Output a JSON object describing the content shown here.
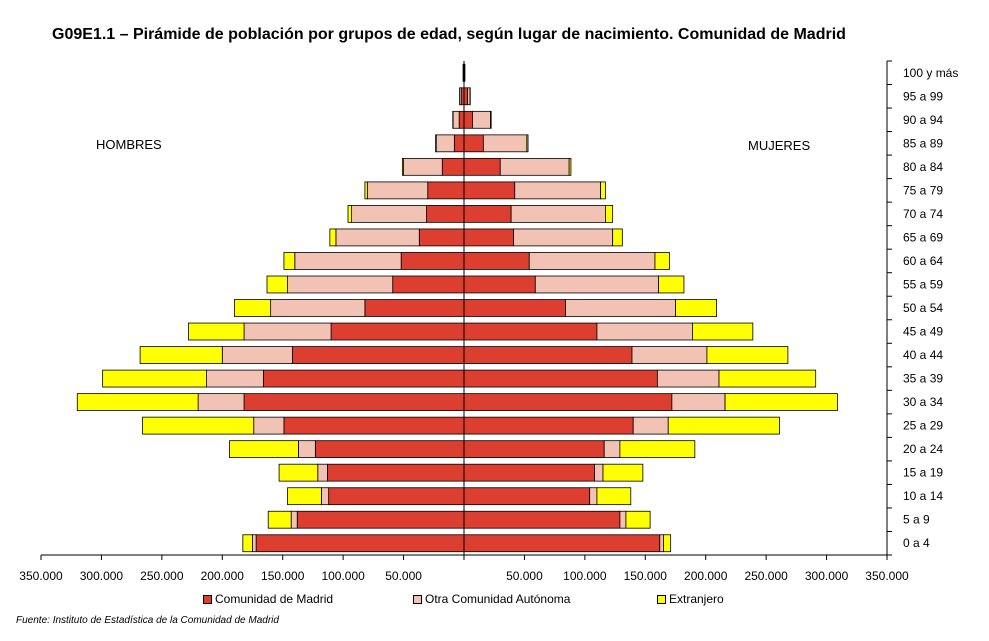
{
  "title": "G09E1.1 – Pirámide de población por grupos de edad, según lugar de nacimiento. Comunidad de Madrid",
  "side_labels": {
    "left": "HOMBRES",
    "right": "MUJERES"
  },
  "source": "Fuente: Instituto de Estadística de la Comunidad de Madrid",
  "colors": {
    "madrid": "#dc3e30",
    "otra": "#f2c2b4",
    "extranjero": "#ffff00"
  },
  "chart_data": {
    "type": "bar",
    "orientation": "horizontal-pyramid",
    "categories": [
      "0 a 4",
      "5 a 9",
      "10 a 14",
      "15 a 19",
      "20 a 24",
      "25 a 29",
      "30 a 34",
      "35 a 39",
      "40 a 44",
      "45 a 49",
      "50 a 54",
      "55 a 59",
      "60 a 64",
      "65 a 69",
      "70 a 74",
      "75 a 79",
      "80 a 84",
      "85 a 89",
      "90 a 94",
      "95 a 99",
      "100 y más"
    ],
    "x_ticks": [
      "350.000",
      "300.000",
      "250.000",
      "200.000",
      "150.000",
      "100.000",
      "50.000",
      "",
      "50.000",
      "100.000",
      "150.000",
      "200.000",
      "250.000",
      "300.000",
      "350.000"
    ],
    "xlim": [
      -350000,
      350000
    ],
    "legend": [
      "Comunidad de Madrid",
      "Otra Comunidad Autónoma",
      "Extranjero"
    ],
    "legend_position": "bottom",
    "series": {
      "hombres": [
        {
          "name": "Comunidad de Madrid",
          "values": [
            172000,
            138000,
            112000,
            113000,
            123000,
            149000,
            182000,
            166000,
            142000,
            110000,
            82000,
            59000,
            52000,
            37000,
            31000,
            30000,
            18000,
            8000,
            4000,
            2000,
            500
          ]
        },
        {
          "name": "Otra Comunidad Autónoma",
          "values": [
            3000,
            5000,
            6000,
            8000,
            14000,
            25000,
            38000,
            47000,
            58000,
            72000,
            78000,
            87000,
            88000,
            69000,
            62000,
            50000,
            32000,
            15000,
            5000,
            1500,
            300
          ]
        },
        {
          "name": "Extranjero",
          "values": [
            8000,
            19000,
            28000,
            32000,
            57000,
            92000,
            100000,
            86000,
            68000,
            46000,
            30000,
            17000,
            9000,
            5000,
            3000,
            2000,
            1000,
            500,
            300,
            100,
            0
          ]
        }
      ],
      "mujeres": [
        {
          "name": "Comunidad de Madrid",
          "values": [
            162000,
            129000,
            104000,
            108000,
            116000,
            140000,
            172000,
            160000,
            139000,
            110000,
            84000,
            59000,
            54000,
            41000,
            39000,
            42000,
            30000,
            16000,
            7000,
            3000,
            500
          ]
        },
        {
          "name": "Otra Comunidad Autónoma",
          "values": [
            3000,
            5000,
            6000,
            7000,
            13000,
            29000,
            44000,
            51000,
            62000,
            79000,
            91000,
            102000,
            104000,
            82000,
            78000,
            71000,
            57000,
            36000,
            15000,
            2000,
            300
          ]
        },
        {
          "name": "Extranjero",
          "values": [
            6000,
            20000,
            28000,
            33000,
            62000,
            92000,
            93000,
            80000,
            67000,
            50000,
            34000,
            21000,
            12000,
            8000,
            6000,
            4000,
            1500,
            1000,
            500,
            200,
            0
          ]
        }
      ]
    }
  }
}
